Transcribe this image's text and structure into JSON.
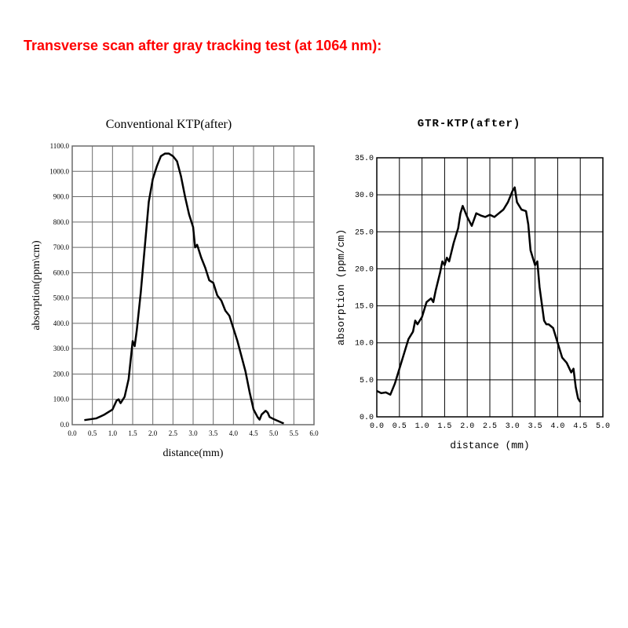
{
  "heading": "Transverse scan after gray tracking test (at 1064 nm):",
  "heading_color": "#ff0000",
  "heading_fontsize": 18,
  "chart_left": {
    "type": "line",
    "title": "Conventional KTP(after)",
    "title_fontsize": 16,
    "xlabel": "distance(mm)",
    "ylabel": "absorption(ppm\\cm)",
    "label_fontsize": 14,
    "xlim": [
      0.0,
      6.0
    ],
    "ylim": [
      0.0,
      1100.0
    ],
    "xtick_step": 0.5,
    "ytick_step": 100.0,
    "xtick_labels": [
      "0.0",
      "0.5",
      "1.0",
      "1.5",
      "2.0",
      "2.5",
      "3.0",
      "3.5",
      "4.0",
      "4.5",
      "5.0",
      "5.5",
      "6.0"
    ],
    "ytick_labels": [
      "0.0",
      "100.0",
      "200.0",
      "300.0",
      "400.0",
      "500.0",
      "600.0",
      "700.0",
      "800.0",
      "900.0",
      "1000.0",
      "1100.0"
    ],
    "line_color": "#000000",
    "line_width": 2.5,
    "grid_color": "#6b6b6b",
    "grid_width": 1,
    "background_color": "#ffffff",
    "tick_fontsize": 9,
    "data": [
      [
        0.3,
        18
      ],
      [
        0.6,
        25
      ],
      [
        0.8,
        40
      ],
      [
        1.0,
        60
      ],
      [
        1.1,
        95
      ],
      [
        1.15,
        100
      ],
      [
        1.2,
        85
      ],
      [
        1.3,
        110
      ],
      [
        1.4,
        180
      ],
      [
        1.5,
        330
      ],
      [
        1.55,
        310
      ],
      [
        1.6,
        370
      ],
      [
        1.7,
        520
      ],
      [
        1.8,
        700
      ],
      [
        1.9,
        880
      ],
      [
        2.0,
        970
      ],
      [
        2.1,
        1020
      ],
      [
        2.2,
        1060
      ],
      [
        2.3,
        1070
      ],
      [
        2.4,
        1070
      ],
      [
        2.5,
        1060
      ],
      [
        2.6,
        1040
      ],
      [
        2.7,
        980
      ],
      [
        2.8,
        900
      ],
      [
        2.9,
        830
      ],
      [
        3.0,
        780
      ],
      [
        3.05,
        700
      ],
      [
        3.1,
        710
      ],
      [
        3.2,
        660
      ],
      [
        3.3,
        620
      ],
      [
        3.4,
        570
      ],
      [
        3.5,
        560
      ],
      [
        3.6,
        510
      ],
      [
        3.7,
        490
      ],
      [
        3.8,
        450
      ],
      [
        3.9,
        430
      ],
      [
        4.0,
        380
      ],
      [
        4.1,
        330
      ],
      [
        4.2,
        270
      ],
      [
        4.3,
        210
      ],
      [
        4.4,
        130
      ],
      [
        4.5,
        60
      ],
      [
        4.6,
        30
      ],
      [
        4.65,
        20
      ],
      [
        4.7,
        40
      ],
      [
        4.8,
        55
      ],
      [
        4.85,
        48
      ],
      [
        4.9,
        30
      ],
      [
        5.0,
        22
      ],
      [
        5.1,
        15
      ],
      [
        5.2,
        8
      ],
      [
        5.25,
        5
      ]
    ]
  },
  "chart_right": {
    "type": "line",
    "title": "GTR-KTP(after)",
    "title_fontsize": 14,
    "xlabel": "distance (mm)",
    "ylabel": "absorption (ppm/cm)",
    "label_fontsize": 13,
    "xlim": [
      0.0,
      5.0
    ],
    "ylim": [
      0.0,
      35.0
    ],
    "xtick_step": 0.5,
    "ytick_step": 5.0,
    "xtick_labels": [
      "0.0",
      "0.5",
      "1.0",
      "1.5",
      "2.0",
      "2.5",
      "3.0",
      "3.5",
      "4.0",
      "4.5",
      "5.0"
    ],
    "ytick_labels": [
      "0.0",
      "5.0",
      "10.0",
      "15.0",
      "20.0",
      "25.0",
      "30.0",
      "35.0"
    ],
    "line_color": "#000000",
    "line_width": 2.5,
    "grid_color": "#000000",
    "grid_width": 1,
    "background_color": "#ffffff",
    "tick_fontsize": 10,
    "data": [
      [
        0.0,
        3.5
      ],
      [
        0.1,
        3.2
      ],
      [
        0.2,
        3.3
      ],
      [
        0.3,
        3.0
      ],
      [
        0.4,
        4.5
      ],
      [
        0.5,
        6.5
      ],
      [
        0.6,
        8.5
      ],
      [
        0.7,
        10.5
      ],
      [
        0.8,
        11.5
      ],
      [
        0.85,
        13.0
      ],
      [
        0.9,
        12.5
      ],
      [
        1.0,
        13.5
      ],
      [
        1.1,
        15.5
      ],
      [
        1.2,
        16.0
      ],
      [
        1.25,
        15.5
      ],
      [
        1.3,
        17.0
      ],
      [
        1.4,
        19.5
      ],
      [
        1.45,
        21.0
      ],
      [
        1.5,
        20.5
      ],
      [
        1.55,
        21.5
      ],
      [
        1.6,
        21.0
      ],
      [
        1.7,
        23.5
      ],
      [
        1.8,
        25.5
      ],
      [
        1.85,
        27.5
      ],
      [
        1.9,
        28.5
      ],
      [
        2.0,
        27.0
      ],
      [
        2.1,
        25.8
      ],
      [
        2.2,
        27.5
      ],
      [
        2.3,
        27.2
      ],
      [
        2.4,
        27.0
      ],
      [
        2.5,
        27.3
      ],
      [
        2.6,
        27.0
      ],
      [
        2.7,
        27.5
      ],
      [
        2.8,
        28.0
      ],
      [
        2.9,
        29.0
      ],
      [
        3.0,
        30.5
      ],
      [
        3.05,
        31.0
      ],
      [
        3.1,
        29.0
      ],
      [
        3.2,
        28.0
      ],
      [
        3.3,
        27.8
      ],
      [
        3.35,
        26.0
      ],
      [
        3.4,
        22.5
      ],
      [
        3.5,
        20.5
      ],
      [
        3.55,
        21.0
      ],
      [
        3.6,
        17.5
      ],
      [
        3.7,
        13.0
      ],
      [
        3.75,
        12.5
      ],
      [
        3.8,
        12.5
      ],
      [
        3.9,
        12.0
      ],
      [
        4.0,
        10.0
      ],
      [
        4.1,
        8.0
      ],
      [
        4.2,
        7.3
      ],
      [
        4.3,
        6.0
      ],
      [
        4.35,
        6.5
      ],
      [
        4.4,
        4.0
      ],
      [
        4.45,
        2.5
      ],
      [
        4.5,
        2.0
      ]
    ]
  }
}
